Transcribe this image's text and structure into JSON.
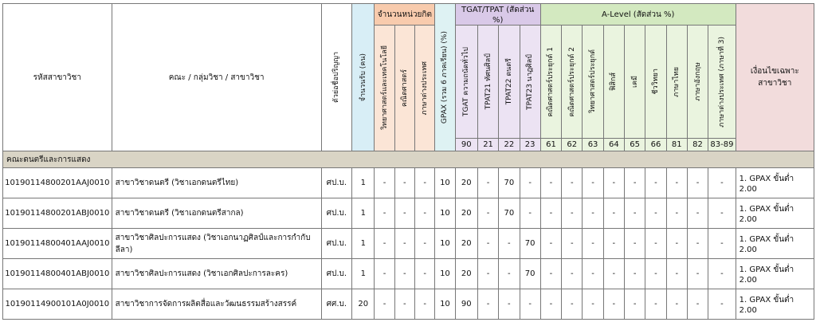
{
  "headers": {
    "code": "รหัสสาขาวิชา",
    "faculty": "คณะ / กลุ่มวิชา / สาขาวิชา",
    "degree": "ตัวย่อชื่อปริญญา",
    "quota": "จำนวนรับ (คน)",
    "credits_group": "จำนวนหน่วยกิต",
    "credits": [
      "วิทยาศาสตร์และเทคโนโลยี",
      "คณิตศาสตร์",
      "ภาษาต่างประเทศ"
    ],
    "gpax": "GPAX (รวม 6 ภาคเรียน) (%)",
    "tgat_group": "TGAT/TPAT (สัดส่วน %)",
    "tgat_cols": [
      {
        "name": "TGAT  ความถนัดทั่วไป",
        "code": "90"
      },
      {
        "name": "TPAT21  ทัศนศิลป์",
        "code": "21"
      },
      {
        "name": "TPAT22  ดนตรี",
        "code": "22"
      },
      {
        "name": "TPAT23  นาฏศิลป์",
        "code": "23"
      }
    ],
    "alevel_group": "A-Level (สัดส่วน %)",
    "alevel_cols": [
      {
        "name": "คณิตศาสตร์ประยุกต์ 1",
        "code": "61"
      },
      {
        "name": "คณิตศาสตร์ประยุกต์ 2",
        "code": "62"
      },
      {
        "name": "วิทยาศาสตร์ประยุกต์",
        "code": "63"
      },
      {
        "name": "ฟิสิกส์",
        "code": "64"
      },
      {
        "name": "เคมี",
        "code": "65"
      },
      {
        "name": "ชีววิทยา",
        "code": "66"
      },
      {
        "name": "ภาษาไทย",
        "code": "81"
      },
      {
        "name": "ภาษาอังกฤษ",
        "code": "82"
      },
      {
        "name": "ภาษาต่างประเทศ (ภาษาที่ 3)",
        "code": "83-89"
      }
    ],
    "condition": "เงื่อนไขเฉพาะ\nสาขาวิชา"
  },
  "section": "คณะดนตรีและการแสดง",
  "rows": [
    {
      "code": "10190114800201AAJ0010",
      "name": "สาขาวิชาดนตรี  (วิชาเอกดนตรีไทย)",
      "degree": "ศป.บ.",
      "quota": "1",
      "credits": [
        "-",
        "-",
        "-"
      ],
      "gpax": "10",
      "tgat": [
        "20",
        "-",
        "70",
        "-"
      ],
      "alevel": [
        "-",
        "-",
        "-",
        "-",
        "-",
        "-",
        "-",
        "-",
        "-"
      ],
      "condition": "1. GPAX ขั้นต่ำ 2.00"
    },
    {
      "code": "10190114800201ABJ0010",
      "name": "สาขาวิชาดนตรี  (วิชาเอกดนตรีสากล)",
      "degree": "ศป.บ.",
      "quota": "1",
      "credits": [
        "-",
        "-",
        "-"
      ],
      "gpax": "10",
      "tgat": [
        "20",
        "-",
        "70",
        "-"
      ],
      "alevel": [
        "-",
        "-",
        "-",
        "-",
        "-",
        "-",
        "-",
        "-",
        "-"
      ],
      "condition": "1. GPAX ขั้นต่ำ 2.00"
    },
    {
      "code": "10190114800401AAJ0010",
      "name": "สาขาวิชาศิลปะการแสดง (วิชาเอกนาฏศิลป์และการกำกับลีลา)",
      "degree": "ศป.บ.",
      "quota": "1",
      "credits": [
        "-",
        "-",
        "-"
      ],
      "gpax": "10",
      "tgat": [
        "20",
        "-",
        "-",
        "70"
      ],
      "alevel": [
        "-",
        "-",
        "-",
        "-",
        "-",
        "-",
        "-",
        "-",
        "-"
      ],
      "condition": "1. GPAX ขั้นต่ำ 2.00"
    },
    {
      "code": "10190114800401ABJ0010",
      "name": "สาขาวิชาศิลปะการแสดง  (วิชาเอกศิลปะการละคร)",
      "degree": "ศป.บ.",
      "quota": "1",
      "credits": [
        "-",
        "-",
        "-"
      ],
      "gpax": "10",
      "tgat": [
        "20",
        "-",
        "-",
        "70"
      ],
      "alevel": [
        "-",
        "-",
        "-",
        "-",
        "-",
        "-",
        "-",
        "-",
        "-"
      ],
      "condition": "1. GPAX ขั้นต่ำ 2.00"
    },
    {
      "code": "10190114900101A0J0010",
      "name": "สาขาวิชาการจัดการผลิตสื่อและวัฒนธรรมสร้างสรรค์",
      "degree": "ศศ.บ.",
      "quota": "20",
      "credits": [
        "-",
        "-",
        "-"
      ],
      "gpax": "10",
      "tgat": [
        "90",
        "-",
        "-",
        "-"
      ],
      "alevel": [
        "-",
        "-",
        "-",
        "-",
        "-",
        "-",
        "-",
        "-",
        "-"
      ],
      "condition": "1. GPAX ขั้นต่ำ 2.00"
    }
  ]
}
